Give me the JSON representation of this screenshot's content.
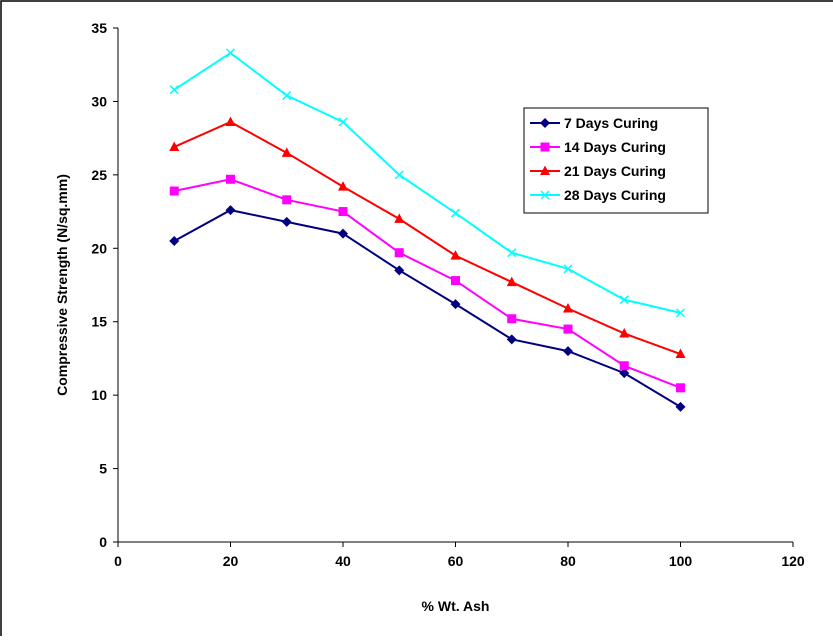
{
  "chart_data": {
    "type": "line",
    "xlabel": "% Wt. Ash",
    "ylabel": "Compressive Strength (N/sq.mm)",
    "xlim": [
      0,
      120
    ],
    "ylim": [
      0,
      35
    ],
    "x_ticks": [
      "0",
      "20",
      "40",
      "60",
      "80",
      "100",
      "120"
    ],
    "y_ticks": [
      "0",
      "5",
      "10",
      "15",
      "20",
      "25",
      "30",
      "35"
    ],
    "grid": false,
    "legend_position": "top-right",
    "x": [
      10,
      20,
      30,
      40,
      50,
      60,
      70,
      80,
      90,
      100
    ],
    "series": [
      {
        "name": "7 Days Curing",
        "color": "#000080",
        "marker": "diamond",
        "values": [
          20.5,
          22.6,
          21.8,
          21.0,
          18.5,
          16.2,
          13.8,
          13.0,
          11.5,
          9.2
        ]
      },
      {
        "name": "14 Days Curing",
        "color": "#FF00FF",
        "marker": "square",
        "values": [
          23.9,
          24.7,
          23.3,
          22.5,
          19.7,
          17.8,
          15.2,
          14.5,
          12.0,
          10.5
        ]
      },
      {
        "name": "21 Days Curing",
        "color": "#FF0000",
        "marker": "triangle",
        "values": [
          26.9,
          28.6,
          26.5,
          24.2,
          22.0,
          19.5,
          17.7,
          15.9,
          14.2,
          12.8
        ]
      },
      {
        "name": "28 Days Curing",
        "color": "#00FFFF",
        "marker": "x",
        "values": [
          30.8,
          33.3,
          30.4,
          28.6,
          25.0,
          22.4,
          19.7,
          18.6,
          16.5,
          15.6
        ]
      }
    ]
  }
}
